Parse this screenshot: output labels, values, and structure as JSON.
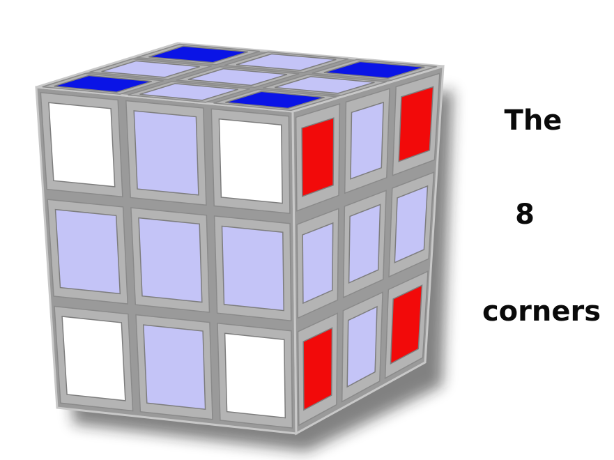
{
  "caption": {
    "line1": "The",
    "line2": "8",
    "line3": "corners"
  },
  "colors": {
    "background": "#ffffff",
    "frame": "#9a9a9a",
    "frame_light": "#c8c8c8",
    "white_sticker": "#ffffff",
    "lavender_sticker": "#c4c4f7",
    "blue_sticker": "#0a14e6",
    "red_sticker": "#f20a0a",
    "shadow": "#1a1a1a"
  },
  "cube": {
    "description_visible": false,
    "top_face": [
      [
        "blue",
        "lavender",
        "blue"
      ],
      [
        "lavender",
        "lavender",
        "lavender"
      ],
      [
        "blue",
        "lavender",
        "blue"
      ]
    ],
    "front_face": [
      [
        "white",
        "lavender",
        "white"
      ],
      [
        "lavender",
        "lavender",
        "lavender"
      ],
      [
        "white",
        "lavender",
        "white"
      ]
    ],
    "right_face": [
      [
        "red",
        "lavender",
        "red"
      ],
      [
        "lavender",
        "lavender",
        "lavender"
      ],
      [
        "red",
        "lavender",
        "red"
      ]
    ]
  }
}
